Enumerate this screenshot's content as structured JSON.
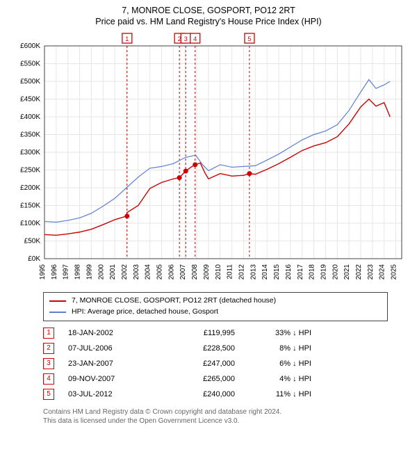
{
  "title1": "7, MONROE CLOSE, GOSPORT, PO12 2RT",
  "title2": "Price paid vs. HM Land Registry's House Price Index (HPI)",
  "chart": {
    "type": "line",
    "xlim": [
      1995,
      2025.5
    ],
    "ylim": [
      0,
      600000
    ],
    "ytick_step": 50000,
    "xtick_step": 1,
    "grid_color": "#e6e6e6",
    "axis_color": "#404040",
    "background": "#ffffff",
    "y_label_prefix": "£",
    "y_label_suffix": "K",
    "series": [
      {
        "name": "hpi",
        "color": "#5b7ed1",
        "width": 1.2,
        "data": [
          [
            1995,
            105000
          ],
          [
            1996,
            103000
          ],
          [
            1997,
            108000
          ],
          [
            1998,
            115000
          ],
          [
            1999,
            128000
          ],
          [
            2000,
            148000
          ],
          [
            2001,
            170000
          ],
          [
            2002,
            200000
          ],
          [
            2003,
            230000
          ],
          [
            2004,
            255000
          ],
          [
            2005,
            260000
          ],
          [
            2006,
            268000
          ],
          [
            2007,
            285000
          ],
          [
            2007.9,
            292000
          ],
          [
            2008.5,
            265000
          ],
          [
            2009,
            248000
          ],
          [
            2010,
            265000
          ],
          [
            2011,
            258000
          ],
          [
            2012,
            260000
          ],
          [
            2013,
            262000
          ],
          [
            2014,
            278000
          ],
          [
            2015,
            295000
          ],
          [
            2016,
            315000
          ],
          [
            2017,
            335000
          ],
          [
            2018,
            350000
          ],
          [
            2019,
            360000
          ],
          [
            2020,
            378000
          ],
          [
            2021,
            418000
          ],
          [
            2022,
            470000
          ],
          [
            2022.7,
            505000
          ],
          [
            2023.3,
            480000
          ],
          [
            2024,
            490000
          ],
          [
            2024.5,
            500000
          ]
        ]
      },
      {
        "name": "property",
        "color": "#cc0000",
        "width": 1.4,
        "data": [
          [
            1995,
            68000
          ],
          [
            1996,
            66000
          ],
          [
            1997,
            70000
          ],
          [
            1998,
            75000
          ],
          [
            1999,
            83000
          ],
          [
            2000,
            96000
          ],
          [
            2001,
            110000
          ],
          [
            2002,
            119995
          ],
          [
            2002.05,
            130000
          ],
          [
            2003,
            150000
          ],
          [
            2004,
            198000
          ],
          [
            2005,
            215000
          ],
          [
            2006,
            225000
          ],
          [
            2006.5,
            228500
          ],
          [
            2007.06,
            247000
          ],
          [
            2007.5,
            258000
          ],
          [
            2007.85,
            265000
          ],
          [
            2008.3,
            270000
          ],
          [
            2008.7,
            242000
          ],
          [
            2009,
            225000
          ],
          [
            2010,
            240000
          ],
          [
            2011,
            233000
          ],
          [
            2012,
            235000
          ],
          [
            2012.5,
            240000
          ],
          [
            2013,
            238000
          ],
          [
            2014,
            252000
          ],
          [
            2015,
            268000
          ],
          [
            2016,
            286000
          ],
          [
            2017,
            305000
          ],
          [
            2018,
            318000
          ],
          [
            2019,
            327000
          ],
          [
            2020,
            344000
          ],
          [
            2021,
            380000
          ],
          [
            2022,
            428000
          ],
          [
            2022.7,
            450000
          ],
          [
            2023.3,
            430000
          ],
          [
            2024,
            440000
          ],
          [
            2024.5,
            400000
          ]
        ]
      }
    ],
    "event_lines": [
      {
        "x": 2002.05,
        "label": "1"
      },
      {
        "x": 2006.52,
        "label": "2"
      },
      {
        "x": 2007.06,
        "label": "3"
      },
      {
        "x": 2007.86,
        "label": "4"
      },
      {
        "x": 2012.5,
        "label": "5"
      }
    ],
    "event_line_color": "#cc0000",
    "event_dash": "3,3",
    "sale_points": [
      {
        "x": 2002.05,
        "y": 119995
      },
      {
        "x": 2006.52,
        "y": 228500
      },
      {
        "x": 2007.06,
        "y": 247000
      },
      {
        "x": 2007.86,
        "y": 265000
      },
      {
        "x": 2012.5,
        "y": 240000
      }
    ],
    "sale_point_color": "#cc0000",
    "sale_point_radius": 3.5
  },
  "legend": {
    "items": [
      {
        "color": "#cc0000",
        "label": "7, MONROE CLOSE, GOSPORT, PO12 2RT (detached house)"
      },
      {
        "color": "#5b7ed1",
        "label": "HPI: Average price, detached house, Gosport"
      }
    ]
  },
  "sales": [
    {
      "n": "1",
      "date": "18-JAN-2002",
      "price": "£119,995",
      "diff": "33% ↓ HPI"
    },
    {
      "n": "2",
      "date": "07-JUL-2006",
      "price": "£228,500",
      "diff": "8% ↓ HPI"
    },
    {
      "n": "3",
      "date": "23-JAN-2007",
      "price": "£247,000",
      "diff": "6% ↓ HPI"
    },
    {
      "n": "4",
      "date": "09-NOV-2007",
      "price": "£265,000",
      "diff": "4% ↓ HPI"
    },
    {
      "n": "5",
      "date": "03-JUL-2012",
      "price": "£240,000",
      "diff": "11% ↓ HPI"
    }
  ],
  "footer1": "Contains HM Land Registry data © Crown copyright and database right 2024.",
  "footer2": "This data is licensed under the Open Government Licence v3.0."
}
